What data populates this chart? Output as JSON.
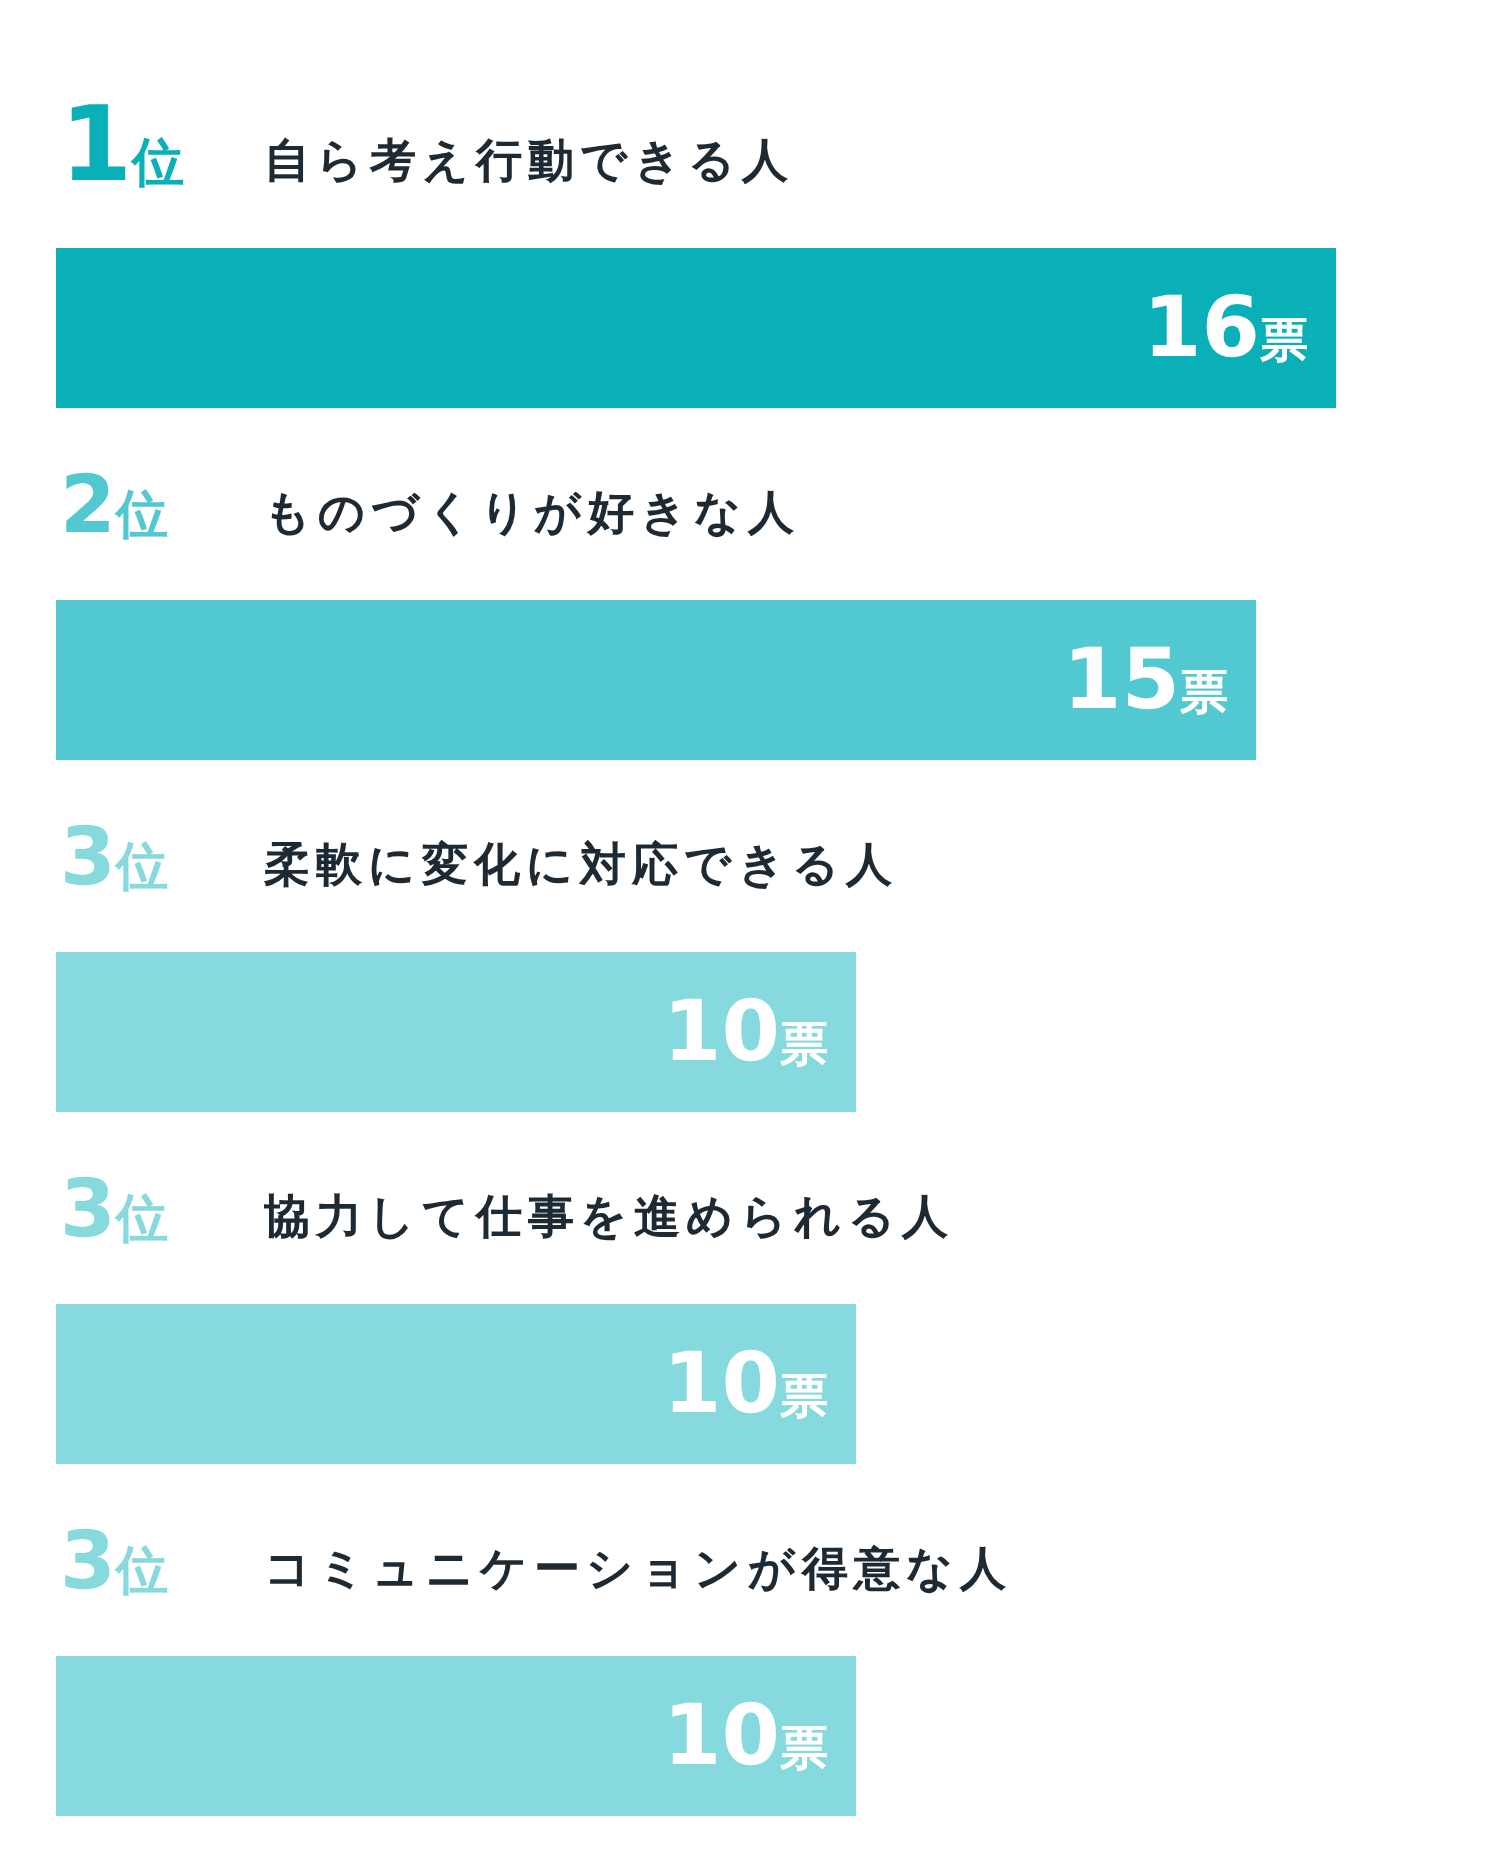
{
  "chart_data": {
    "type": "bar",
    "orientation": "horizontal",
    "categories": [
      "自ら考え行動できる人",
      "ものづくりが好きな人",
      "柔軟に変化に対応できる人",
      "協力して仕事を進められる人",
      "コミュニケーションが得意な人"
    ],
    "values": [
      16,
      15,
      10,
      10,
      10
    ],
    "colors": [
      "#0ab0b8",
      "#52c9d0",
      "#86d9dc",
      "#86d9dc",
      "#86d9dc"
    ],
    "value_labels": [
      "16票",
      "15票",
      "10票",
      "10票",
      "10票"
    ],
    "annotations": [
      "1位",
      "2位",
      "3位",
      "3位",
      "3位"
    ]
  }
}
